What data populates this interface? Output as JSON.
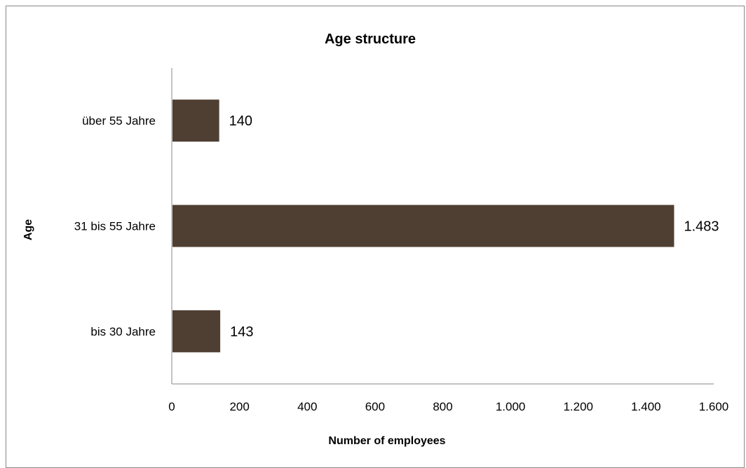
{
  "chart_data": {
    "type": "bar",
    "orientation": "horizontal",
    "title": "Age structure",
    "xlabel": "Number of employees",
    "ylabel": "Age",
    "categories": [
      "bis 30 Jahre",
      "31 bis 55 Jahre",
      "über 55 Jahre"
    ],
    "values": [
      143,
      1483,
      140
    ],
    "data_labels": [
      "143",
      "1.483",
      "140"
    ],
    "xlim": [
      0,
      1600
    ],
    "xticks": [
      0,
      200,
      400,
      600,
      800,
      1000,
      1200,
      1400,
      1600
    ],
    "xtick_labels": [
      "0",
      "200",
      "400",
      "600",
      "800",
      "1.000",
      "1.200",
      "1.400",
      "1.600"
    ],
    "grid": false,
    "legend": "none",
    "bar_color": "#4f3f33"
  }
}
